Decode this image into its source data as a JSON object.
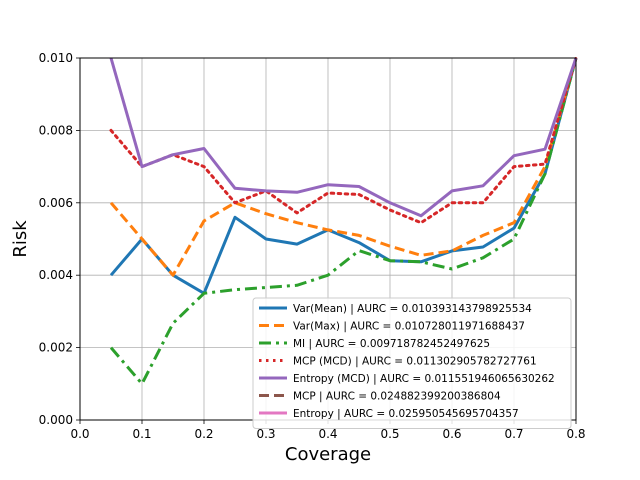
{
  "chart_data": {
    "type": "line",
    "title": "",
    "xlabel": "Coverage",
    "ylabel": "Risk",
    "xlim": [
      0.0,
      0.8
    ],
    "ylim": [
      0.0,
      0.01
    ],
    "xticks": [
      "0.0",
      "0.1",
      "0.2",
      "0.3",
      "0.4",
      "0.5",
      "0.6",
      "0.7",
      "0.8"
    ],
    "yticks": [
      "0.000",
      "0.002",
      "0.004",
      "0.006",
      "0.008",
      "0.010"
    ],
    "grid": true,
    "legend_position": "lower-right",
    "series": [
      {
        "name": "Var(Mean) | AURC = 0.010393143798925534",
        "color": "#1f77b4",
        "style": "solid",
        "x": [
          0.05,
          0.1,
          0.15,
          0.2,
          0.25,
          0.3,
          0.35,
          0.4,
          0.45,
          0.5,
          0.55,
          0.6,
          0.65,
          0.7,
          0.75,
          0.8
        ],
        "y": [
          0.004,
          0.005,
          0.004,
          0.0035,
          0.0056,
          0.005,
          0.00486,
          0.00525,
          0.0049,
          0.0044,
          0.00437,
          0.00467,
          0.00478,
          0.0053,
          0.0068,
          0.01
        ]
      },
      {
        "name": "Var(Max) | AURC = 0.010728011971688437",
        "color": "#ff7f0e",
        "style": "dashed",
        "x": [
          0.05,
          0.1,
          0.15,
          0.2,
          0.25,
          0.3,
          0.35,
          0.4,
          0.45,
          0.5,
          0.55,
          0.6,
          0.65,
          0.7,
          0.75,
          0.8
        ],
        "y": [
          0.006,
          0.005,
          0.004,
          0.0055,
          0.006,
          0.0057,
          0.00545,
          0.00525,
          0.0051,
          0.0048,
          0.00455,
          0.00467,
          0.0051,
          0.00545,
          0.007,
          0.01
        ]
      },
      {
        "name": "MI | AURC = 0.009718782452497625",
        "color": "#2ca02c",
        "style": "dashdot",
        "x": [
          0.05,
          0.1,
          0.15,
          0.2,
          0.25,
          0.3,
          0.35,
          0.4,
          0.45,
          0.5,
          0.55,
          0.6,
          0.65,
          0.7,
          0.75,
          0.8
        ],
        "y": [
          0.002,
          0.001,
          0.00267,
          0.0035,
          0.0036,
          0.00366,
          0.00372,
          0.004,
          0.00468,
          0.0044,
          0.00437,
          0.00417,
          0.00448,
          0.005,
          0.0068,
          0.01
        ]
      },
      {
        "name": "MCP (MCD) | AURC = 0.011302905782727761",
        "color": "#d62728",
        "style": "dotted",
        "x": [
          0.05,
          0.1,
          0.15,
          0.2,
          0.25,
          0.3,
          0.35,
          0.4,
          0.45,
          0.5,
          0.55,
          0.6,
          0.65,
          0.7,
          0.75,
          0.8
        ],
        "y": [
          0.008,
          0.007,
          0.00733,
          0.007,
          0.006,
          0.00633,
          0.00572,
          0.00627,
          0.00623,
          0.0058,
          0.00545,
          0.006,
          0.006,
          0.007,
          0.00707,
          0.01
        ]
      },
      {
        "name": "Entropy (MCD) | AURC = 0.011551946065630262",
        "color": "#9467bd",
        "style": "solid",
        "x": [
          0.05,
          0.1,
          0.15,
          0.2,
          0.25,
          0.3,
          0.35,
          0.4,
          0.45,
          0.5,
          0.55,
          0.6,
          0.65,
          0.7,
          0.75,
          0.8
        ],
        "y": [
          0.01,
          0.007,
          0.00733,
          0.0075,
          0.0064,
          0.00633,
          0.00629,
          0.0065,
          0.00645,
          0.006,
          0.00564,
          0.00633,
          0.00647,
          0.0073,
          0.00748,
          0.01
        ]
      },
      {
        "name": "MCP | AURC = 0.024882399200386804",
        "color": "#8c564b",
        "style": "dashed",
        "x": [],
        "y": []
      },
      {
        "name": "Entropy | AURC = 0.025950545695704357",
        "color": "#e377c2",
        "style": "solid",
        "x": [],
        "y": []
      }
    ]
  }
}
